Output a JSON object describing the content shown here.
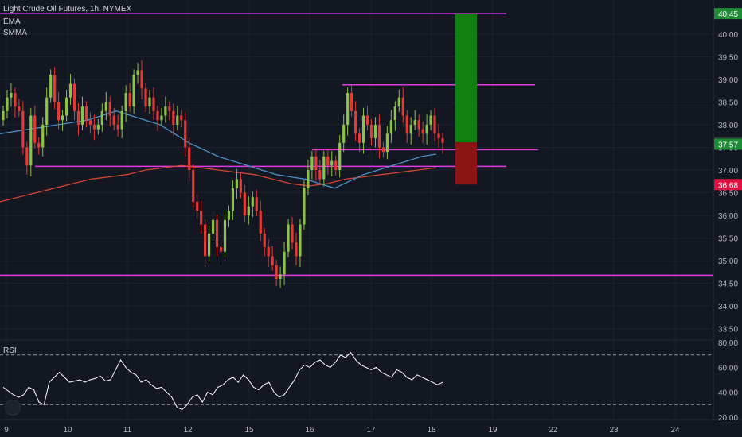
{
  "header": {
    "symbol": "Light Crude Oil Futures, 1h, NYMEX",
    "indicator1": "EMA",
    "indicator2": "SMMA",
    "rsi_label": "RSI"
  },
  "colors": {
    "background": "#131722",
    "grid": "#1e2230",
    "axis_text": "#b2b5be",
    "candle_up": "#8bc34a",
    "candle_down": "#e53935",
    "ema": "#4a90c8",
    "smma": "#d2472f",
    "levels": "#e03ae0",
    "target": "#108010",
    "stop": "#8b1414",
    "rsi_line": "#ffffff",
    "price_badge_green": "#1e8c34",
    "price_badge_red": "#e01040"
  },
  "chart_data": [
    {
      "type": "candlestick",
      "x_ticks": [
        "9",
        "10",
        "11",
        "12",
        "15",
        "16",
        "17",
        "18",
        "19",
        "22",
        "23",
        "24"
      ],
      "y_ticks": [
        33.5,
        34.0,
        34.5,
        35.0,
        35.5,
        36.0,
        36.5,
        37.0,
        37.5,
        38.0,
        38.5,
        39.0,
        39.5,
        40.0
      ],
      "ylim": [
        33.25,
        40.75
      ],
      "candles_close": [
        38.3,
        38.6,
        38.7,
        38.4,
        38.3,
        37.5,
        37.1,
        38.2,
        37.6,
        37.5,
        38.0,
        38.6,
        39.1,
        38.5,
        38.1,
        38.2,
        38.6,
        38.9,
        38.3,
        38.0,
        38.4,
        38.1,
        38.0,
        37.9,
        38.0,
        38.3,
        38.5,
        38.2,
        38.0,
        37.9,
        38.3,
        38.7,
        38.4,
        39.1,
        39.2,
        38.8,
        38.4,
        38.6,
        38.3,
        38.1,
        38.2,
        38.4,
        38.3,
        38.0,
        38.2,
        38.1,
        37.5,
        37.0,
        36.3,
        36.1,
        35.8,
        35.1,
        35.6,
        35.9,
        35.3,
        35.2,
        35.9,
        36.1,
        36.6,
        36.8,
        36.5,
        36.0,
        36.2,
        36.4,
        36.1,
        35.6,
        35.3,
        35.1,
        34.9,
        34.6,
        34.7,
        35.2,
        35.8,
        35.4,
        35.1,
        35.8,
        36.6,
        37.0,
        37.3,
        37.0,
        36.8,
        37.3,
        37.1,
        37.2,
        37.0,
        37.6,
        38.0,
        38.7,
        38.3,
        37.8,
        37.6,
        38.2,
        38.0,
        37.7,
        38.0,
        37.5,
        37.4,
        37.8,
        38.1,
        38.4,
        38.6,
        38.2,
        37.8,
        38.0,
        38.1,
        37.9,
        37.8,
        38.0,
        38.2,
        37.8,
        37.7,
        37.6
      ],
      "candles_open": [
        38.1,
        38.3,
        38.6,
        38.7,
        38.4,
        38.3,
        37.5,
        37.1,
        38.2,
        37.6,
        37.5,
        38.0,
        38.6,
        39.1,
        38.5,
        38.1,
        38.2,
        38.6,
        38.9,
        38.3,
        38.0,
        38.4,
        38.1,
        38.0,
        37.9,
        38.0,
        38.3,
        38.5,
        38.2,
        38.0,
        37.9,
        38.3,
        38.7,
        38.4,
        39.1,
        39.2,
        38.8,
        38.4,
        38.6,
        38.3,
        38.1,
        38.2,
        38.4,
        38.3,
        38.0,
        38.2,
        38.1,
        37.5,
        37.0,
        36.3,
        36.1,
        35.8,
        35.1,
        35.6,
        35.9,
        35.3,
        35.2,
        35.9,
        36.1,
        36.6,
        36.8,
        36.5,
        36.0,
        36.2,
        36.4,
        36.1,
        35.6,
        35.3,
        35.1,
        34.9,
        34.6,
        34.7,
        35.2,
        35.8,
        35.4,
        35.1,
        35.8,
        36.6,
        37.0,
        37.3,
        37.0,
        36.8,
        37.3,
        37.1,
        37.2,
        37.0,
        37.6,
        38.0,
        38.7,
        38.3,
        37.8,
        37.6,
        38.2,
        38.0,
        37.7,
        38.0,
        37.5,
        37.4,
        37.8,
        38.1,
        38.4,
        38.6,
        38.2,
        37.8,
        38.0,
        38.1,
        37.9,
        37.8,
        38.0,
        38.2,
        37.8,
        37.7
      ],
      "ema_values": [
        37.8,
        37.85,
        37.9,
        37.95,
        38.0,
        38.05,
        38.1,
        38.2,
        38.3,
        38.2,
        38.1,
        38.0,
        37.8,
        37.6,
        37.45,
        37.3,
        37.2,
        37.1,
        37.0,
        36.9,
        36.85,
        36.8,
        36.7,
        36.6,
        36.75,
        36.9,
        37.0,
        37.1,
        37.2,
        37.3,
        37.35
      ],
      "smma_values": [
        36.3,
        36.4,
        36.5,
        36.6,
        36.7,
        36.8,
        36.85,
        36.9,
        37.0,
        37.05,
        37.1,
        37.05,
        37.0,
        36.95,
        36.9,
        36.8,
        36.7,
        36.65,
        36.7,
        36.8,
        36.85,
        36.9,
        36.95,
        37.0,
        37.05
      ],
      "horizontal_levels": [
        40.45,
        38.88,
        37.45,
        37.08,
        34.68
      ],
      "long_position": {
        "entry": 37.61,
        "target": 40.45,
        "stop": 36.68
      },
      "price_labels": [
        {
          "text": "40.45",
          "value": 40.45,
          "color": "#1e8c34"
        },
        {
          "text": "37.61",
          "value": 37.61,
          "color": "#2a2e39"
        },
        {
          "text": "37.57",
          "value": 37.57,
          "color": "#1e8c34"
        },
        {
          "text": "36.68",
          "value": 36.68,
          "color": "#e01040"
        }
      ]
    },
    {
      "type": "line",
      "name": "RSI",
      "y_ticks": [
        20.0,
        40.0,
        60.0,
        80.0
      ],
      "ylim": [
        18,
        82
      ],
      "bands": [
        30,
        70
      ],
      "values": [
        44,
        41,
        38,
        36,
        38,
        44,
        42,
        32,
        30,
        48,
        52,
        56,
        52,
        48,
        49,
        50,
        48,
        50,
        51,
        53,
        49,
        50,
        58,
        66,
        60,
        56,
        54,
        48,
        50,
        46,
        43,
        44,
        40,
        36,
        28,
        26,
        30,
        36,
        38,
        32,
        40,
        38,
        44,
        46,
        50,
        52,
        48,
        54,
        50,
        44,
        42,
        46,
        48,
        40,
        36,
        38,
        44,
        50,
        58,
        62,
        60,
        64,
        66,
        62,
        60,
        64,
        70,
        68,
        72,
        66,
        62,
        60,
        58,
        60,
        56,
        54,
        52,
        58,
        56,
        52,
        50,
        54,
        52,
        50,
        48,
        46,
        48
      ]
    }
  ]
}
